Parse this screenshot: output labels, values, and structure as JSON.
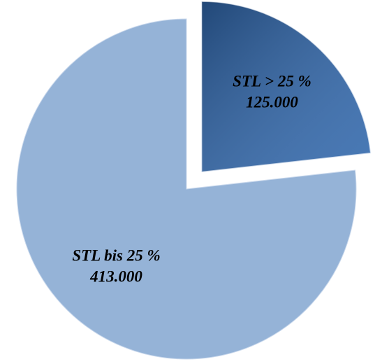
{
  "chart_data": {
    "type": "pie",
    "categories": [
      "STL > 25 %",
      "STL bis 25 %"
    ],
    "values": [
      125000,
      413000
    ],
    "value_labels": [
      "125.000",
      "413.000"
    ],
    "colors": [
      "#2f66ab",
      "#95b3d7"
    ]
  }
}
